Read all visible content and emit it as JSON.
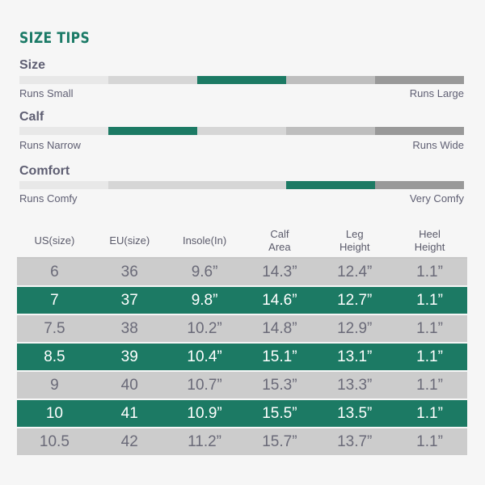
{
  "title": "SIZE TIPS",
  "colors": {
    "accent": "#1c7a64",
    "seg_lightest": "#e8e8e8",
    "seg_light": "#d6d6d6",
    "seg_mid": "#bebebe",
    "seg_dark": "#999999"
  },
  "scales": [
    {
      "label": "Size",
      "left": "Runs Small",
      "right": "Runs Large",
      "active_segment": 3,
      "segments": 5
    },
    {
      "label": "Calf",
      "left": "Runs Narrow",
      "right": "Runs Wide",
      "active_segment": 2,
      "segments": 5
    },
    {
      "label": "Comfort",
      "left": "Runs Comfy",
      "right": "Very Comfy",
      "active_segment": 4,
      "segments": 5
    }
  ],
  "table": {
    "headers": [
      "US(size)",
      "EU(size)",
      "Insole(In)",
      "Calf\nArea",
      "Leg\nHeight",
      "Heel\nHeight"
    ],
    "rows": [
      [
        "6",
        "36",
        "9.6”",
        "14.3”",
        "12.4”",
        "1.1”"
      ],
      [
        "7",
        "37",
        "9.8”",
        "14.6”",
        "12.7”",
        "1.1”"
      ],
      [
        "7.5",
        "38",
        "10.2”",
        "14.8”",
        "12.9”",
        "1.1”"
      ],
      [
        "8.5",
        "39",
        "10.4”",
        "15.1”",
        "13.1”",
        "1.1”"
      ],
      [
        "9",
        "40",
        "10.7”",
        "15.3”",
        "13.3”",
        "1.1”"
      ],
      [
        "10",
        "41",
        "10.9”",
        "15.5”",
        "13.5”",
        "1.1”"
      ],
      [
        "10.5",
        "42",
        "11.2”",
        "15.7”",
        "13.7”",
        "1.1”"
      ]
    ],
    "row_styles": [
      "light",
      "dark",
      "light",
      "dark",
      "light",
      "dark",
      "light"
    ]
  }
}
